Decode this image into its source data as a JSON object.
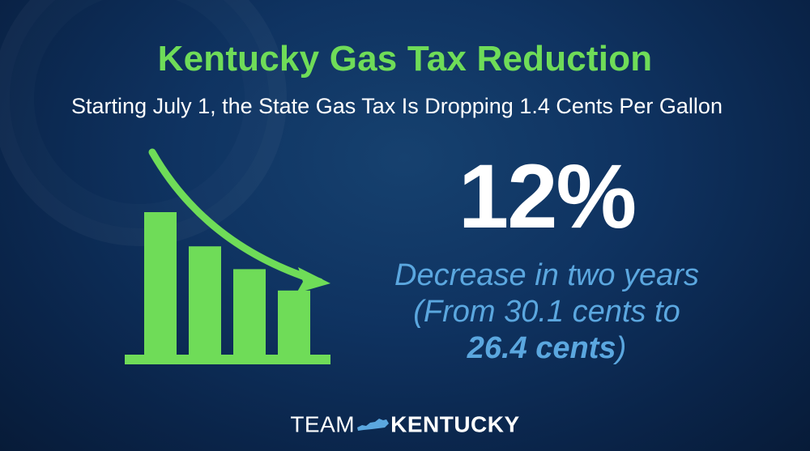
{
  "title": "Kentucky Gas Tax Reduction",
  "subtitle": "Starting July 1, the State Gas Tax Is Dropping 1.4 Cents Per Gallon",
  "stat": {
    "value": "12%",
    "line1": "Decrease in two years",
    "line2": "(From 30.1 cents to",
    "line3_bold": "26.4 cents",
    "line3_end": ")"
  },
  "logo": {
    "part1": "TEAM",
    "part2": "KENTUCKY"
  },
  "icon": {
    "name": "declining-bar-chart-icon",
    "bar_levels": [
      1.0,
      0.76,
      0.6,
      0.45
    ]
  },
  "colors": {
    "green": "#6fdc58",
    "blue": "#5ba7df",
    "background": "#0f3361",
    "white": "#ffffff"
  }
}
